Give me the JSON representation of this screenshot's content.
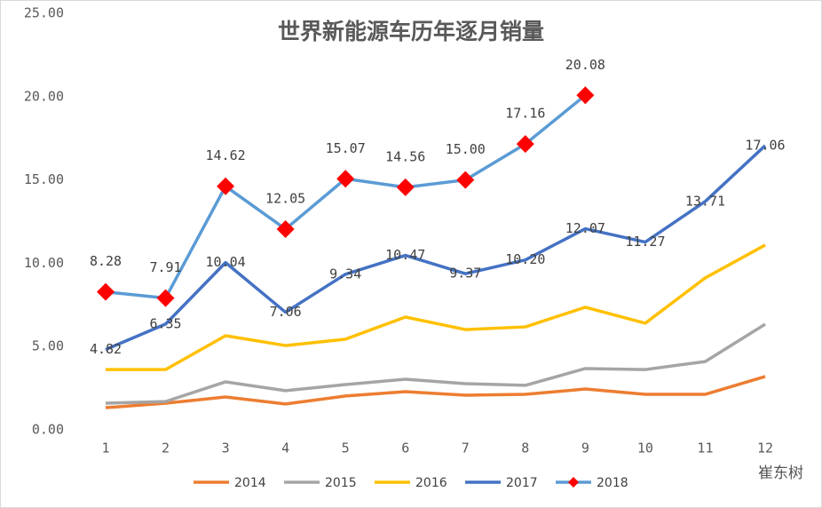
{
  "chart_data": {
    "type": "line",
    "title": "世界新能源车历年逐月销量",
    "categories": [
      "1",
      "2",
      "3",
      "4",
      "5",
      "6",
      "7",
      "8",
      "9",
      "10",
      "11",
      "12"
    ],
    "ylim": [
      0,
      25
    ],
    "yticks": [
      {
        "value": 0,
        "label": "0.00"
      },
      {
        "value": 5,
        "label": "5.00"
      },
      {
        "value": 10,
        "label": "10.00"
      },
      {
        "value": 15,
        "label": "15.00"
      },
      {
        "value": 20,
        "label": "20.00"
      },
      {
        "value": 25,
        "label": "25.00"
      }
    ],
    "grid": false,
    "legend": "bottom",
    "series": [
      {
        "name": "2014",
        "color": "#ed7d31",
        "values": [
          1.33,
          1.6,
          1.97,
          1.55,
          2.03,
          2.29,
          2.08,
          2.13,
          2.45,
          2.13,
          2.13,
          3.2
        ]
      },
      {
        "name": "2015",
        "color": "#a5a5a5",
        "values": [
          1.6,
          1.7,
          2.88,
          2.35,
          2.72,
          3.04,
          2.77,
          2.67,
          3.68,
          3.62,
          4.1,
          6.34
        ]
      },
      {
        "name": "2016",
        "color": "#ffc000",
        "values": [
          3.62,
          3.62,
          5.65,
          5.06,
          5.44,
          6.77,
          6.02,
          6.18,
          7.36,
          6.4,
          9.12,
          11.09
        ]
      },
      {
        "name": "2017",
        "color": "#4472c4",
        "values": [
          4.82,
          6.35,
          10.04,
          7.06,
          9.34,
          10.47,
          9.37,
          10.2,
          12.07,
          11.27,
          13.71,
          17.06
        ],
        "value_labels": [
          "4.82",
          "6.35",
          "10.04",
          "7.06",
          "9.34",
          "10.47",
          "9.37",
          "10.20",
          "12.07",
          "11.27",
          "13.71",
          "17.06"
        ]
      },
      {
        "name": "2018",
        "color": "#5b9bd5",
        "marker": "diamond",
        "marker_color": "#ff0000",
        "values": [
          8.28,
          7.91,
          14.62,
          12.05,
          15.07,
          14.56,
          15.0,
          17.16,
          20.08,
          null,
          null,
          null
        ],
        "value_labels": [
          "8.28",
          "7.91",
          "14.62",
          "12.05",
          "15.07",
          "14.56",
          "15.00",
          "17.16",
          "20.08",
          null,
          null,
          null
        ]
      }
    ]
  },
  "watermark": "崔东树"
}
